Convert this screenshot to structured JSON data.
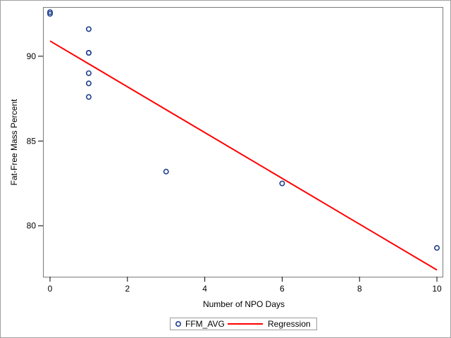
{
  "chart_data": {
    "type": "scatter",
    "xlabel": "Number of NPO Days",
    "ylabel": "Fat-Free Mass Percent",
    "xlim": [
      0,
      10
    ],
    "ylim": [
      77.0,
      92.9
    ],
    "xticks": [
      0,
      2,
      4,
      6,
      8,
      10
    ],
    "yticks": [
      80,
      85,
      90
    ],
    "grid": false,
    "legend_position": "bottom",
    "series": [
      {
        "name": "FFM_AVG",
        "kind": "scatter",
        "marker": "circle",
        "color": "#1f3f8f",
        "points": [
          {
            "x": 0,
            "y": 92.6
          },
          {
            "x": 0,
            "y": 92.5
          },
          {
            "x": 1,
            "y": 91.6
          },
          {
            "x": 1,
            "y": 90.2
          },
          {
            "x": 1,
            "y": 90.2
          },
          {
            "x": 1,
            "y": 89.0
          },
          {
            "x": 1,
            "y": 88.4
          },
          {
            "x": 1,
            "y": 87.6
          },
          {
            "x": 3,
            "y": 83.2
          },
          {
            "x": 6,
            "y": 82.5
          },
          {
            "x": 10,
            "y": 78.7
          }
        ]
      },
      {
        "name": "Regression",
        "kind": "line",
        "color": "#ff0000",
        "points": [
          {
            "x": 0,
            "y": 90.9
          },
          {
            "x": 10,
            "y": 77.4
          }
        ]
      }
    ]
  }
}
